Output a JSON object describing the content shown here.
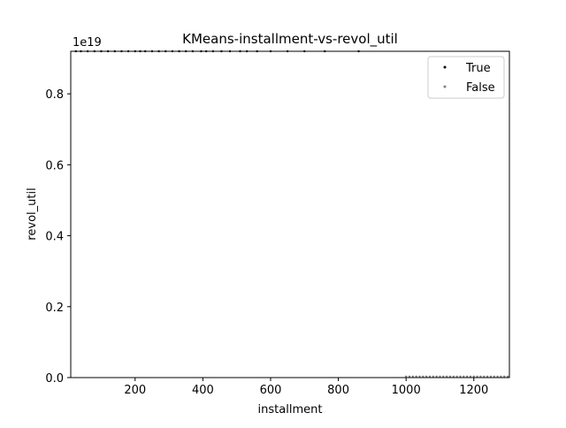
{
  "chart_data": {
    "type": "scatter",
    "title": "KMeans-installment-vs-revol_util",
    "xlabel": "installment",
    "ylabel": "revol_util",
    "y_scale_note": "1e19",
    "xlim": [
      10,
      1305
    ],
    "ylim": [
      0,
      9.2e+18
    ],
    "x_ticks": [
      200,
      400,
      600,
      800,
      1000,
      1200
    ],
    "x_tick_labels": [
      "200",
      "400",
      "600",
      "800",
      "1000",
      "1200"
    ],
    "y_ticks": [
      0,
      2e+18,
      4e+18,
      6e+18,
      8e+18
    ],
    "y_tick_labels": [
      "0.0",
      "0.2",
      "0.4",
      "0.6",
      "0.8"
    ],
    "legend_position": "top-right",
    "grid": false,
    "series": [
      {
        "name": "True",
        "color": "#000000",
        "x": [
          25,
          40,
          60,
          80,
          100,
          120,
          140,
          160,
          180,
          200,
          215,
          230,
          250,
          270,
          290,
          310,
          330,
          350,
          370,
          395,
          410,
          430,
          455,
          480,
          510,
          530,
          560,
          600,
          650,
          700,
          760,
          860
        ],
        "y": [
          9.2e+18,
          9.2e+18,
          9.2e+18,
          9.2e+18,
          9.2e+18,
          9.2e+18,
          9.2e+18,
          9.2e+18,
          9.2e+18,
          9.2e+18,
          9.2e+18,
          9.2e+18,
          9.2e+18,
          9.2e+18,
          9.2e+18,
          9.2e+18,
          9.2e+18,
          9.2e+18,
          9.2e+18,
          9.2e+18,
          9.2e+18,
          9.2e+18,
          9.2e+18,
          9.2e+18,
          9.2e+18,
          9.2e+18,
          9.2e+18,
          9.2e+18,
          9.2e+18,
          9.2e+18,
          9.2e+18,
          9.2e+18
        ]
      },
      {
        "name": "False",
        "color": "#808080",
        "x": [
          1000,
          1010,
          1020,
          1030,
          1040,
          1050,
          1060,
          1070,
          1080,
          1090,
          1100,
          1110,
          1120,
          1130,
          1140,
          1150,
          1160,
          1170,
          1180,
          1190,
          1200,
          1210,
          1220,
          1230,
          1240,
          1250,
          1260,
          1270,
          1280,
          1290,
          1300
        ],
        "y": [
          3e+16,
          3e+16,
          3e+16,
          3e+16,
          3e+16,
          3e+16,
          3e+16,
          3e+16,
          3e+16,
          3e+16,
          3e+16,
          3e+16,
          3e+16,
          3e+16,
          3e+16,
          3e+16,
          3e+16,
          3e+16,
          3e+16,
          3e+16,
          3e+16,
          3e+16,
          3e+16,
          3e+16,
          3e+16,
          3e+16,
          3e+16,
          3e+16,
          3e+16,
          3e+16,
          3e+16
        ]
      }
    ]
  }
}
